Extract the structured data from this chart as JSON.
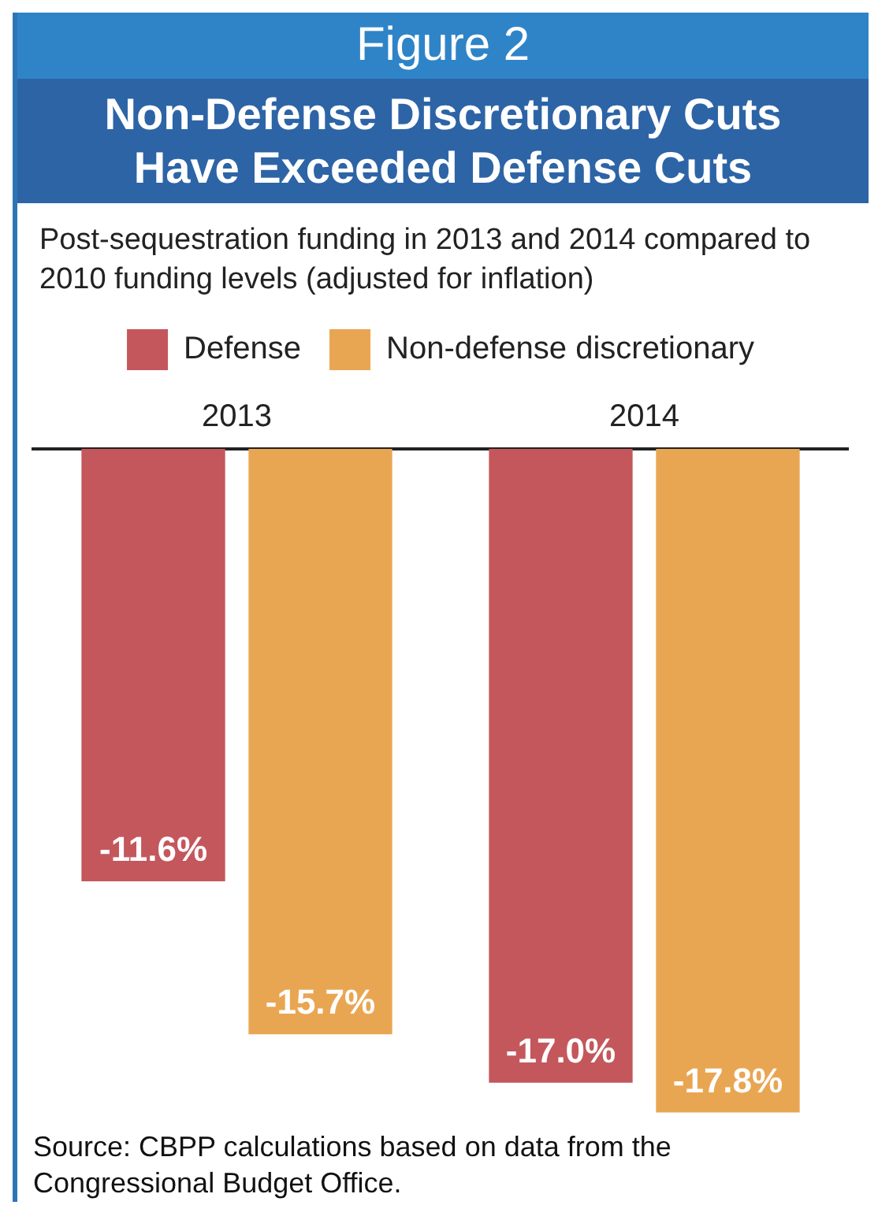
{
  "chart_data": {
    "type": "bar",
    "title": "Non-Defense Discretionary Cuts Have Exceeded Defense Cuts",
    "subtitle": "Post-sequestration funding in 2013 and 2014 compared to 2010 funding levels (adjusted for inflation)",
    "annotations": [
      "Figure 2",
      "Source:  CBPP calculations based on data from the Congressional Budget Office."
    ],
    "categories": [
      "2013",
      "2014"
    ],
    "series": [
      {
        "name": "Defense",
        "color": "#c4575c",
        "values": [
          -11.6,
          -17.0
        ],
        "value_labels": [
          "-11.6%",
          "-17.0%"
        ]
      },
      {
        "name": "Non-defense discretionary",
        "color": "#e9a652",
        "values": [
          -15.7,
          -17.8
        ],
        "value_labels": [
          "-15.7%",
          "-17.8%"
        ]
      }
    ],
    "legend": "top",
    "grid": false
  }
}
